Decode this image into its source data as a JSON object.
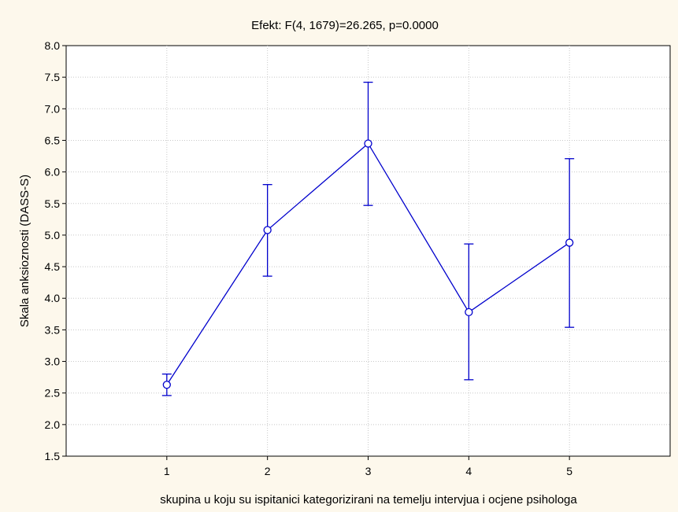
{
  "chart_data": {
    "type": "line",
    "title": "Efekt: F(4, 1679)=26.265, p=0.0000",
    "xlabel": "skupina u koju su ispitanici kategorizirani na temelju intervjua i ocjene psihologa",
    "ylabel": "Skala anksioznosti (DASS-S)",
    "xlim": [
      0,
      6
    ],
    "ylim": [
      1.5,
      8.0
    ],
    "x_ticks": [
      "1",
      "2",
      "3",
      "4",
      "5"
    ],
    "y_ticks": [
      "1.5",
      "2.0",
      "2.5",
      "3.0",
      "3.5",
      "4.0",
      "4.5",
      "5.0",
      "5.5",
      "6.0",
      "6.5",
      "7.0",
      "7.5",
      "8.0"
    ],
    "grid": true,
    "series": [
      {
        "color": "#0000cc",
        "points": [
          {
            "x": 1,
            "y": 2.63,
            "lower": 2.46,
            "upper": 2.8
          },
          {
            "x": 2,
            "y": 5.08,
            "lower": 4.35,
            "upper": 5.8
          },
          {
            "x": 3,
            "y": 6.45,
            "lower": 5.47,
            "upper": 7.42
          },
          {
            "x": 4,
            "y": 3.78,
            "lower": 2.71,
            "upper": 4.86
          },
          {
            "x": 5,
            "y": 4.88,
            "lower": 3.54,
            "upper": 6.21
          }
        ]
      }
    ]
  }
}
